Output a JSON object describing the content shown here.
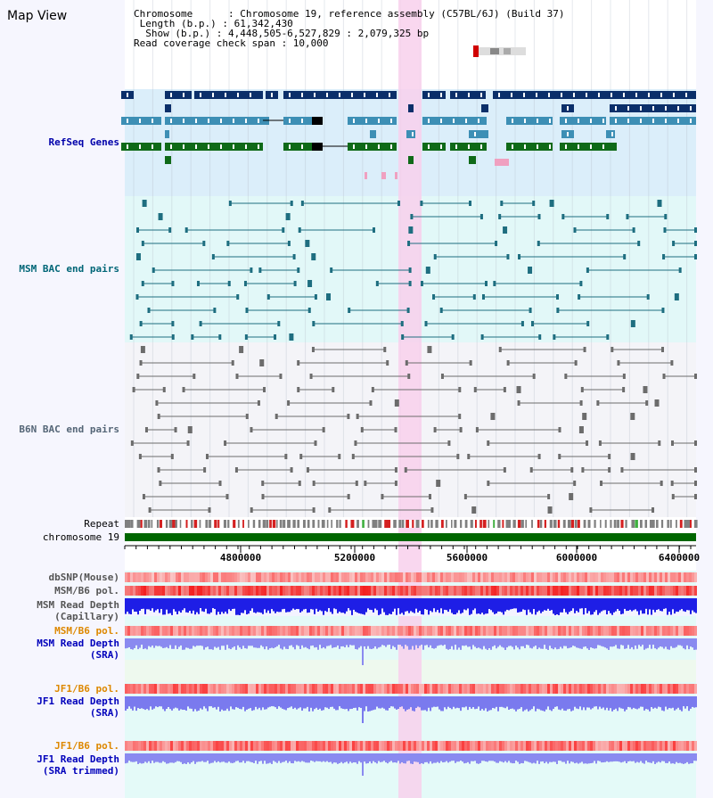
{
  "title": "Map View",
  "header": {
    "lines": [
      "Chromosome      : Chromosome 19, reference assembly (C57BL/6J) (Build 37)",
      " Length (b.p.) : 61,342,430",
      "  Show (b.p.) : 4,448,505-6,527,829 : 2,079,325 bp",
      "Read coverage check span : 10,000"
    ]
  },
  "tracks": {
    "refseq": "RefSeq Genes",
    "msm_bac": "MSM BAC end pairs",
    "b6n_bac": "B6N BAC end pairs",
    "repeat": "Repeat",
    "chromosome": "chromosome 19",
    "dbsnp": "dbSNP(Mouse)",
    "msm_b6_pol_a": "MSM/B6 pol.",
    "msm_depth_cap_1": "MSM Read Depth",
    "msm_depth_cap_2": "(Capillary)",
    "msm_b6_pol_b": "MSM/B6 pol.",
    "msm_depth_sra_1": "MSM Read Depth",
    "msm_depth_sra_2": "(SRA)",
    "jf1_b6_pol_a": "JF1/B6 pol.",
    "jf1_depth_sra_1": "JF1 Read Depth",
    "jf1_depth_sra_2": "(SRA)",
    "jf1_b6_pol_b": "JF1/B6 pol.",
    "jf1_depth_trim_1": "JF1 Read Depth",
    "jf1_depth_trim_2": "(SRA trimmed)"
  },
  "axis": {
    "ticks": [
      "4800000",
      "5200000",
      "5600000",
      "6000000",
      "6400000"
    ]
  },
  "colors": {
    "refseq_bg": "#dbeefa",
    "msm_bac_bg": "#e2f8f8",
    "b6n_bac_bg": "#f4f4f8",
    "highlight": "#f8d0ec",
    "refseq_label": "#0000aa",
    "msm_label": "#006677",
    "b6n_label": "#556677",
    "pol_label": "#dd8800",
    "depth_label": "#0000bb",
    "chromosome_bar": "#006600"
  }
}
